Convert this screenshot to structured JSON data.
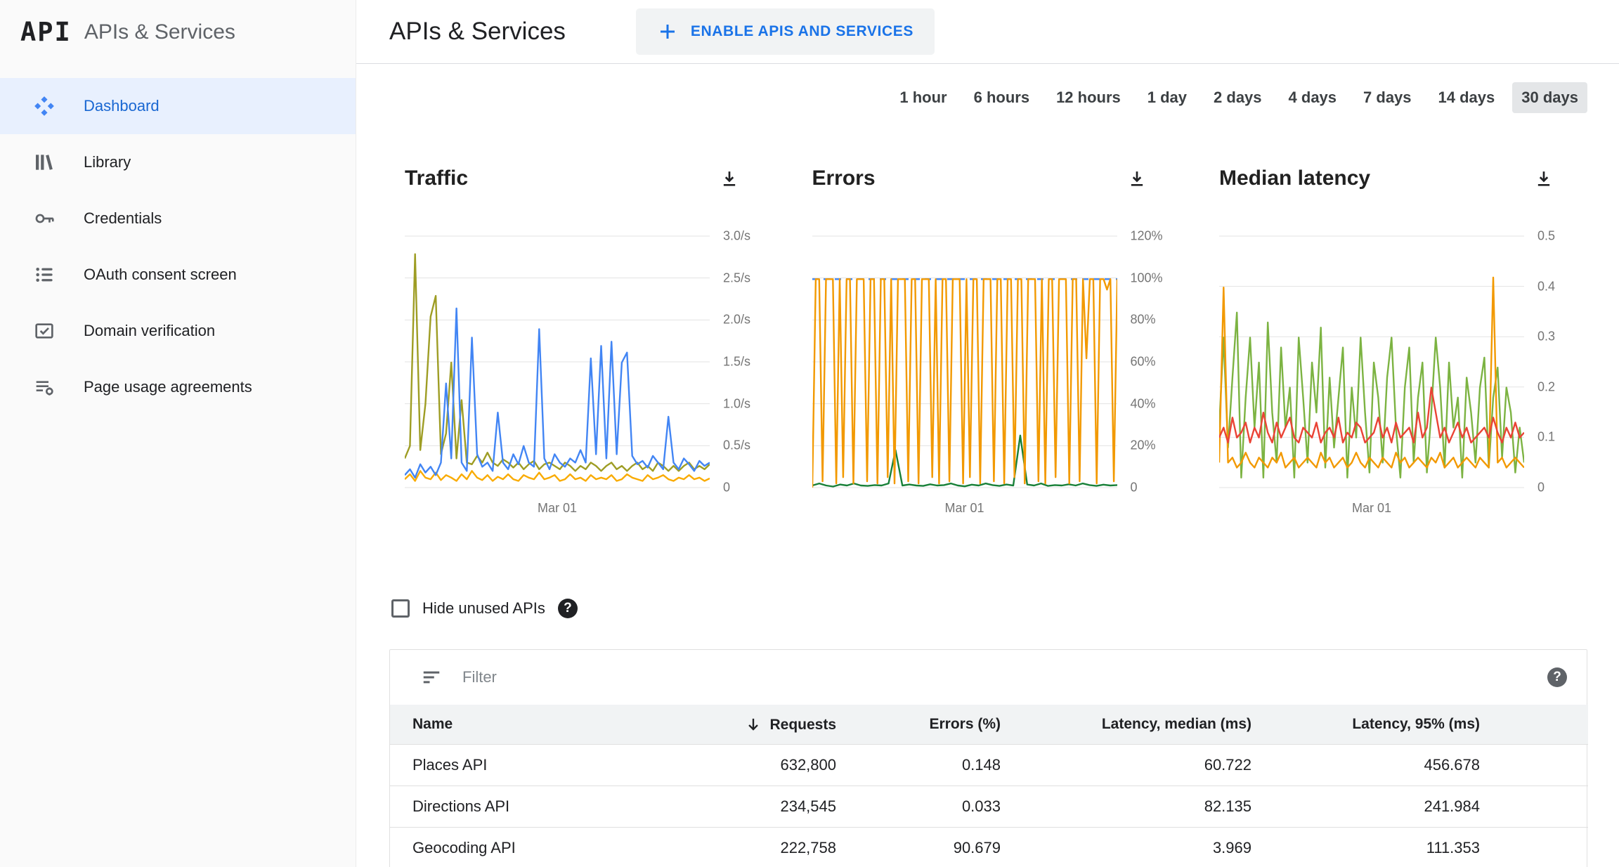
{
  "app": {
    "logo": "API",
    "sidebar_title": "APIs & Services"
  },
  "sidebar": {
    "items": [
      {
        "label": "Dashboard",
        "icon": "dashboard",
        "active": true
      },
      {
        "label": "Library",
        "icon": "library",
        "active": false
      },
      {
        "label": "Credentials",
        "icon": "key",
        "active": false
      },
      {
        "label": "OAuth consent screen",
        "icon": "consent",
        "active": false
      },
      {
        "label": "Domain verification",
        "icon": "domain",
        "active": false
      },
      {
        "label": "Page usage agreements",
        "icon": "agreements",
        "active": false
      }
    ]
  },
  "header": {
    "title": "APIs & Services",
    "enable_button": "ENABLE APIS AND SERVICES"
  },
  "time_ranges": {
    "options": [
      "1 hour",
      "6 hours",
      "12 hours",
      "1 day",
      "2 days",
      "4 days",
      "7 days",
      "14 days",
      "30 days"
    ],
    "selected": "30 days"
  },
  "icons": {
    "help_glyph": "?"
  },
  "filters": {
    "hide_unused_label": "Hide unused APIs",
    "filter_placeholder": "Filter"
  },
  "chart_data": [
    {
      "type": "line",
      "title": "Traffic",
      "x_label": "Mar 01",
      "y_ticks": [
        "3.0/s",
        "2.5/s",
        "2.0/s",
        "1.5/s",
        "1.0/s",
        "0.5/s",
        "0"
      ],
      "y_max": 3,
      "legend": "hidden",
      "grid": true,
      "series": [
        {
          "name": "traffic-orange",
          "color": "#f9ab00",
          "values": [
            0.1,
            0.16,
            0.08,
            0.2,
            0.12,
            0.1,
            0.18,
            0.09,
            0.15,
            0.12,
            0.08,
            0.16,
            0.1,
            0.2,
            0.12,
            0.09,
            0.15,
            0.08,
            0.13,
            0.1,
            0.16,
            0.1,
            0.08,
            0.15,
            0.12,
            0.1,
            0.18,
            0.1,
            0.12,
            0.15,
            0.08,
            0.1,
            0.16,
            0.1,
            0.12,
            0.08,
            0.15,
            0.1,
            0.12,
            0.1,
            0.15,
            0.08,
            0.1,
            0.16,
            0.12,
            0.1,
            0.08,
            0.15,
            0.1,
            0.12,
            0.15,
            0.1,
            0.08,
            0.12,
            0.1,
            0.15,
            0.1,
            0.12,
            0.08,
            0.11
          ]
        },
        {
          "name": "traffic-olive",
          "color": "#9e9d24",
          "values": [
            0.35,
            0.5,
            2.8,
            0.45,
            1.0,
            2.05,
            2.3,
            0.4,
            0.65,
            1.5,
            0.35,
            1.05,
            0.3,
            0.28,
            0.38,
            0.3,
            0.42,
            0.3,
            0.26,
            0.34,
            0.3,
            0.24,
            0.3,
            0.22,
            0.28,
            0.32,
            0.22,
            0.28,
            0.3,
            0.26,
            0.22,
            0.3,
            0.26,
            0.2,
            0.26,
            0.22,
            0.3,
            0.26,
            0.2,
            0.26,
            0.3,
            0.22,
            0.26,
            0.2,
            0.26,
            0.3,
            0.22,
            0.26,
            0.2,
            0.3,
            0.26,
            0.2,
            0.26,
            0.2,
            0.26,
            0.3,
            0.22,
            0.26,
            0.22,
            0.28
          ]
        },
        {
          "name": "traffic-blue",
          "color": "#4285f4",
          "values": [
            0.15,
            0.22,
            0.12,
            0.28,
            0.18,
            0.25,
            0.15,
            0.3,
            1.25,
            0.35,
            2.15,
            0.3,
            0.2,
            1.8,
            0.4,
            0.25,
            0.3,
            0.2,
            0.9,
            0.3,
            0.22,
            0.4,
            0.28,
            0.5,
            0.3,
            0.25,
            1.9,
            0.35,
            0.22,
            0.4,
            0.3,
            0.25,
            0.35,
            0.3,
            0.45,
            0.3,
            1.55,
            0.4,
            1.7,
            0.35,
            1.75,
            0.4,
            1.5,
            1.62,
            0.38,
            0.28,
            0.32,
            0.24,
            0.38,
            0.3,
            0.22,
            0.85,
            0.3,
            0.22,
            0.35,
            0.28,
            0.2,
            0.32,
            0.26,
            0.3
          ]
        }
      ]
    },
    {
      "type": "line",
      "title": "Errors",
      "x_label": "Mar 01",
      "y_ticks": [
        "120%",
        "100%",
        "80%",
        "60%",
        "40%",
        "20%",
        "0"
      ],
      "y_max": 120,
      "legend": "hidden",
      "grid": true,
      "series": [
        {
          "name": "errors-ref-100",
          "color": "#4285f4",
          "dash": true,
          "values": [
            100,
            100
          ]
        },
        {
          "name": "errors-green",
          "color": "#188038",
          "values": [
            1,
            2,
            1,
            0.5,
            1.5,
            1,
            2,
            1,
            0.8,
            1.2,
            1,
            2,
            18,
            1,
            1.5,
            1,
            0.8,
            1.6,
            1,
            1.2,
            2,
            1,
            0.6,
            1.4,
            1,
            2,
            1.2,
            0.8,
            1.5,
            1,
            25,
            1.5,
            1,
            2,
            0.8,
            1.2,
            1,
            1.6,
            1,
            2,
            1.2,
            0.8,
            1.4,
            1,
            1.2
          ]
        },
        {
          "name": "errors-orange",
          "color": "#f29900",
          "values": [
            0,
            100,
            100,
            3,
            100,
            100,
            100,
            2,
            100,
            5,
            100,
            100,
            2,
            100,
            100,
            100,
            3,
            100,
            100,
            2,
            100,
            100,
            5,
            100,
            2,
            100,
            100,
            100,
            3,
            100,
            100,
            2,
            100,
            100,
            100,
            5,
            100,
            2,
            100,
            100,
            3,
            100,
            100,
            100,
            2,
            100,
            5,
            100,
            100,
            2,
            100,
            100,
            100,
            3,
            100,
            100,
            2,
            100,
            100,
            5,
            100,
            100,
            2,
            100,
            100,
            100,
            3,
            100,
            2,
            100,
            100,
            5,
            100,
            100,
            100,
            2,
            100,
            100,
            3,
            100,
            62,
            100,
            100,
            2,
            100,
            100,
            95,
            100,
            3,
            100
          ]
        }
      ]
    },
    {
      "type": "line",
      "title": "Median latency",
      "x_label": "Mar 01",
      "y_ticks": [
        "0.5",
        "0.4",
        "0.3",
        "0.2",
        "0.1",
        "0"
      ],
      "y_max": 0.5,
      "legend": "hidden",
      "grid": true,
      "series": [
        {
          "name": "latency-green",
          "color": "#7cb342",
          "values": [
            0.12,
            0.3,
            0.08,
            0.22,
            0.35,
            0.02,
            0.18,
            0.3,
            0.12,
            0.25,
            0.02,
            0.33,
            0.15,
            0.05,
            0.28,
            0.12,
            0.2,
            0.02,
            0.3,
            0.18,
            0.05,
            0.25,
            0.15,
            0.32,
            0.04,
            0.22,
            0.08,
            0.18,
            0.28,
            0.02,
            0.2,
            0.1,
            0.3,
            0.15,
            0.03,
            0.25,
            0.18,
            0.05,
            0.22,
            0.3,
            0.12,
            0.02,
            0.2,
            0.28,
            0.05,
            0.18,
            0.25,
            0.03,
            0.15,
            0.3,
            0.2,
            0.04,
            0.25,
            0.12,
            0.18,
            0.02,
            0.22,
            0.15,
            0.05,
            0.2,
            0.26,
            0.04,
            0.18,
            0.24,
            0.06,
            0.2,
            0.15,
            0.03,
            0.12,
            0.05
          ]
        },
        {
          "name": "latency-orange",
          "color": "#f29900",
          "values": [
            0.05,
            0.4,
            0.05,
            0.06,
            0.04,
            0.05,
            0.07,
            0.05,
            0.04,
            0.06,
            0.05,
            0.04,
            0.06,
            0.05,
            0.07,
            0.04,
            0.05,
            0.06,
            0.04,
            0.05,
            0.06,
            0.05,
            0.04,
            0.07,
            0.05,
            0.06,
            0.04,
            0.05,
            0.06,
            0.04,
            0.05,
            0.07,
            0.05,
            0.04,
            0.06,
            0.05,
            0.04,
            0.06,
            0.05,
            0.04,
            0.07,
            0.05,
            0.06,
            0.04,
            0.05,
            0.06,
            0.05,
            0.04,
            0.06,
            0.05,
            0.07,
            0.04,
            0.05,
            0.06,
            0.04,
            0.05,
            0.06,
            0.05,
            0.04,
            0.06,
            0.05,
            0.04,
            0.42,
            0.05,
            0.06,
            0.04,
            0.05,
            0.06,
            0.05,
            0.04
          ]
        },
        {
          "name": "latency-red",
          "color": "#ea4335",
          "values": [
            0.1,
            0.12,
            0.09,
            0.14,
            0.1,
            0.11,
            0.13,
            0.09,
            0.12,
            0.1,
            0.15,
            0.11,
            0.09,
            0.13,
            0.1,
            0.12,
            0.14,
            0.1,
            0.09,
            0.12,
            0.11,
            0.1,
            0.13,
            0.09,
            0.11,
            0.12,
            0.1,
            0.14,
            0.09,
            0.11,
            0.1,
            0.13,
            0.12,
            0.09,
            0.1,
            0.11,
            0.14,
            0.1,
            0.12,
            0.09,
            0.13,
            0.1,
            0.11,
            0.12,
            0.09,
            0.15,
            0.1,
            0.12,
            0.2,
            0.15,
            0.1,
            0.12,
            0.09,
            0.11,
            0.13,
            0.1,
            0.12,
            0.09,
            0.1,
            0.11,
            0.12,
            0.1,
            0.14,
            0.11,
            0.09,
            0.12,
            0.1,
            0.13,
            0.1,
            0.11
          ]
        }
      ]
    }
  ],
  "table": {
    "columns": [
      "Name",
      "Requests",
      "Errors (%)",
      "Latency, median (ms)",
      "Latency, 95% (ms)"
    ],
    "sort_column": "Requests",
    "rows": [
      [
        "Places API",
        "632,800",
        "0.148",
        "60.722",
        "456.678"
      ],
      [
        "Directions API",
        "234,545",
        "0.033",
        "82.135",
        "241.984"
      ],
      [
        "Geocoding API",
        "222,758",
        "90.679",
        "3.969",
        "111.353"
      ]
    ]
  }
}
